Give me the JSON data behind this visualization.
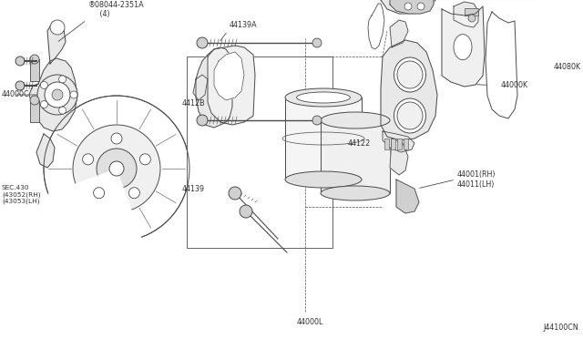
{
  "bg_color": "#ffffff",
  "line_color": "#4a4a4a",
  "text_color": "#333333",
  "light_gray": "#e8e8e8",
  "mid_gray": "#d0d0d0",
  "fig_w": 6.4,
  "fig_h": 3.72,
  "dpi": 100,
  "labels": {
    "bolt_label": "¹08044-2351A\n    (4)",
    "lbl_44000C": "44000C",
    "lbl_sec430": "SEC.430\n(43052(RH)\n(43053(LH)",
    "lbl_44139A": "44139A",
    "lbl_4412B": "4412B",
    "lbl_44139": "44139",
    "lbl_44122": "44122",
    "lbl_44000L": "44000L",
    "lbl_44000K": "44000K",
    "lbl_44080K": "44080K",
    "lbl_44001": "44001(RH)\n44011(LH)",
    "lbl_diagram": "J44100CN"
  }
}
